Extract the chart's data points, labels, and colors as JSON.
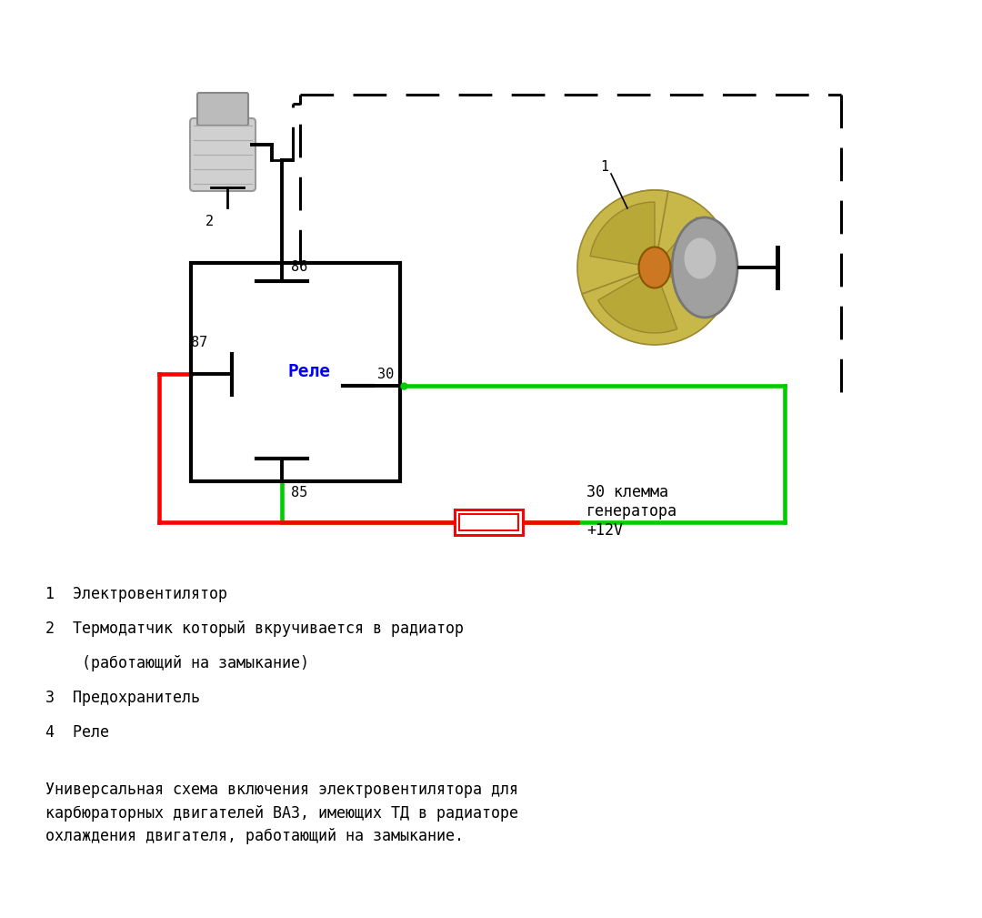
{
  "bg_color": "#ffffff",
  "relay_label": "Реле",
  "relay_label_color": "#0000ff",
  "red_color": "#ff0000",
  "green_color": "#00cc00",
  "black_color": "#000000",
  "text_lines": [
    "1  Электровентилятор",
    "2  Термодатчик который вкручивается в радиатор",
    "    (работающий на замыкание)",
    "3  Предохранитель",
    "4  Реле"
  ],
  "footer_text": "Универсальная схема включения электровентилятора для\nкарбюраторных двигателей ВАЗ, имеющих ТД в радиаторе\nохлаждения двигателя, работающий на замыкание.",
  "label_30_klema": "30 клемма\nгенератора\n+12V"
}
